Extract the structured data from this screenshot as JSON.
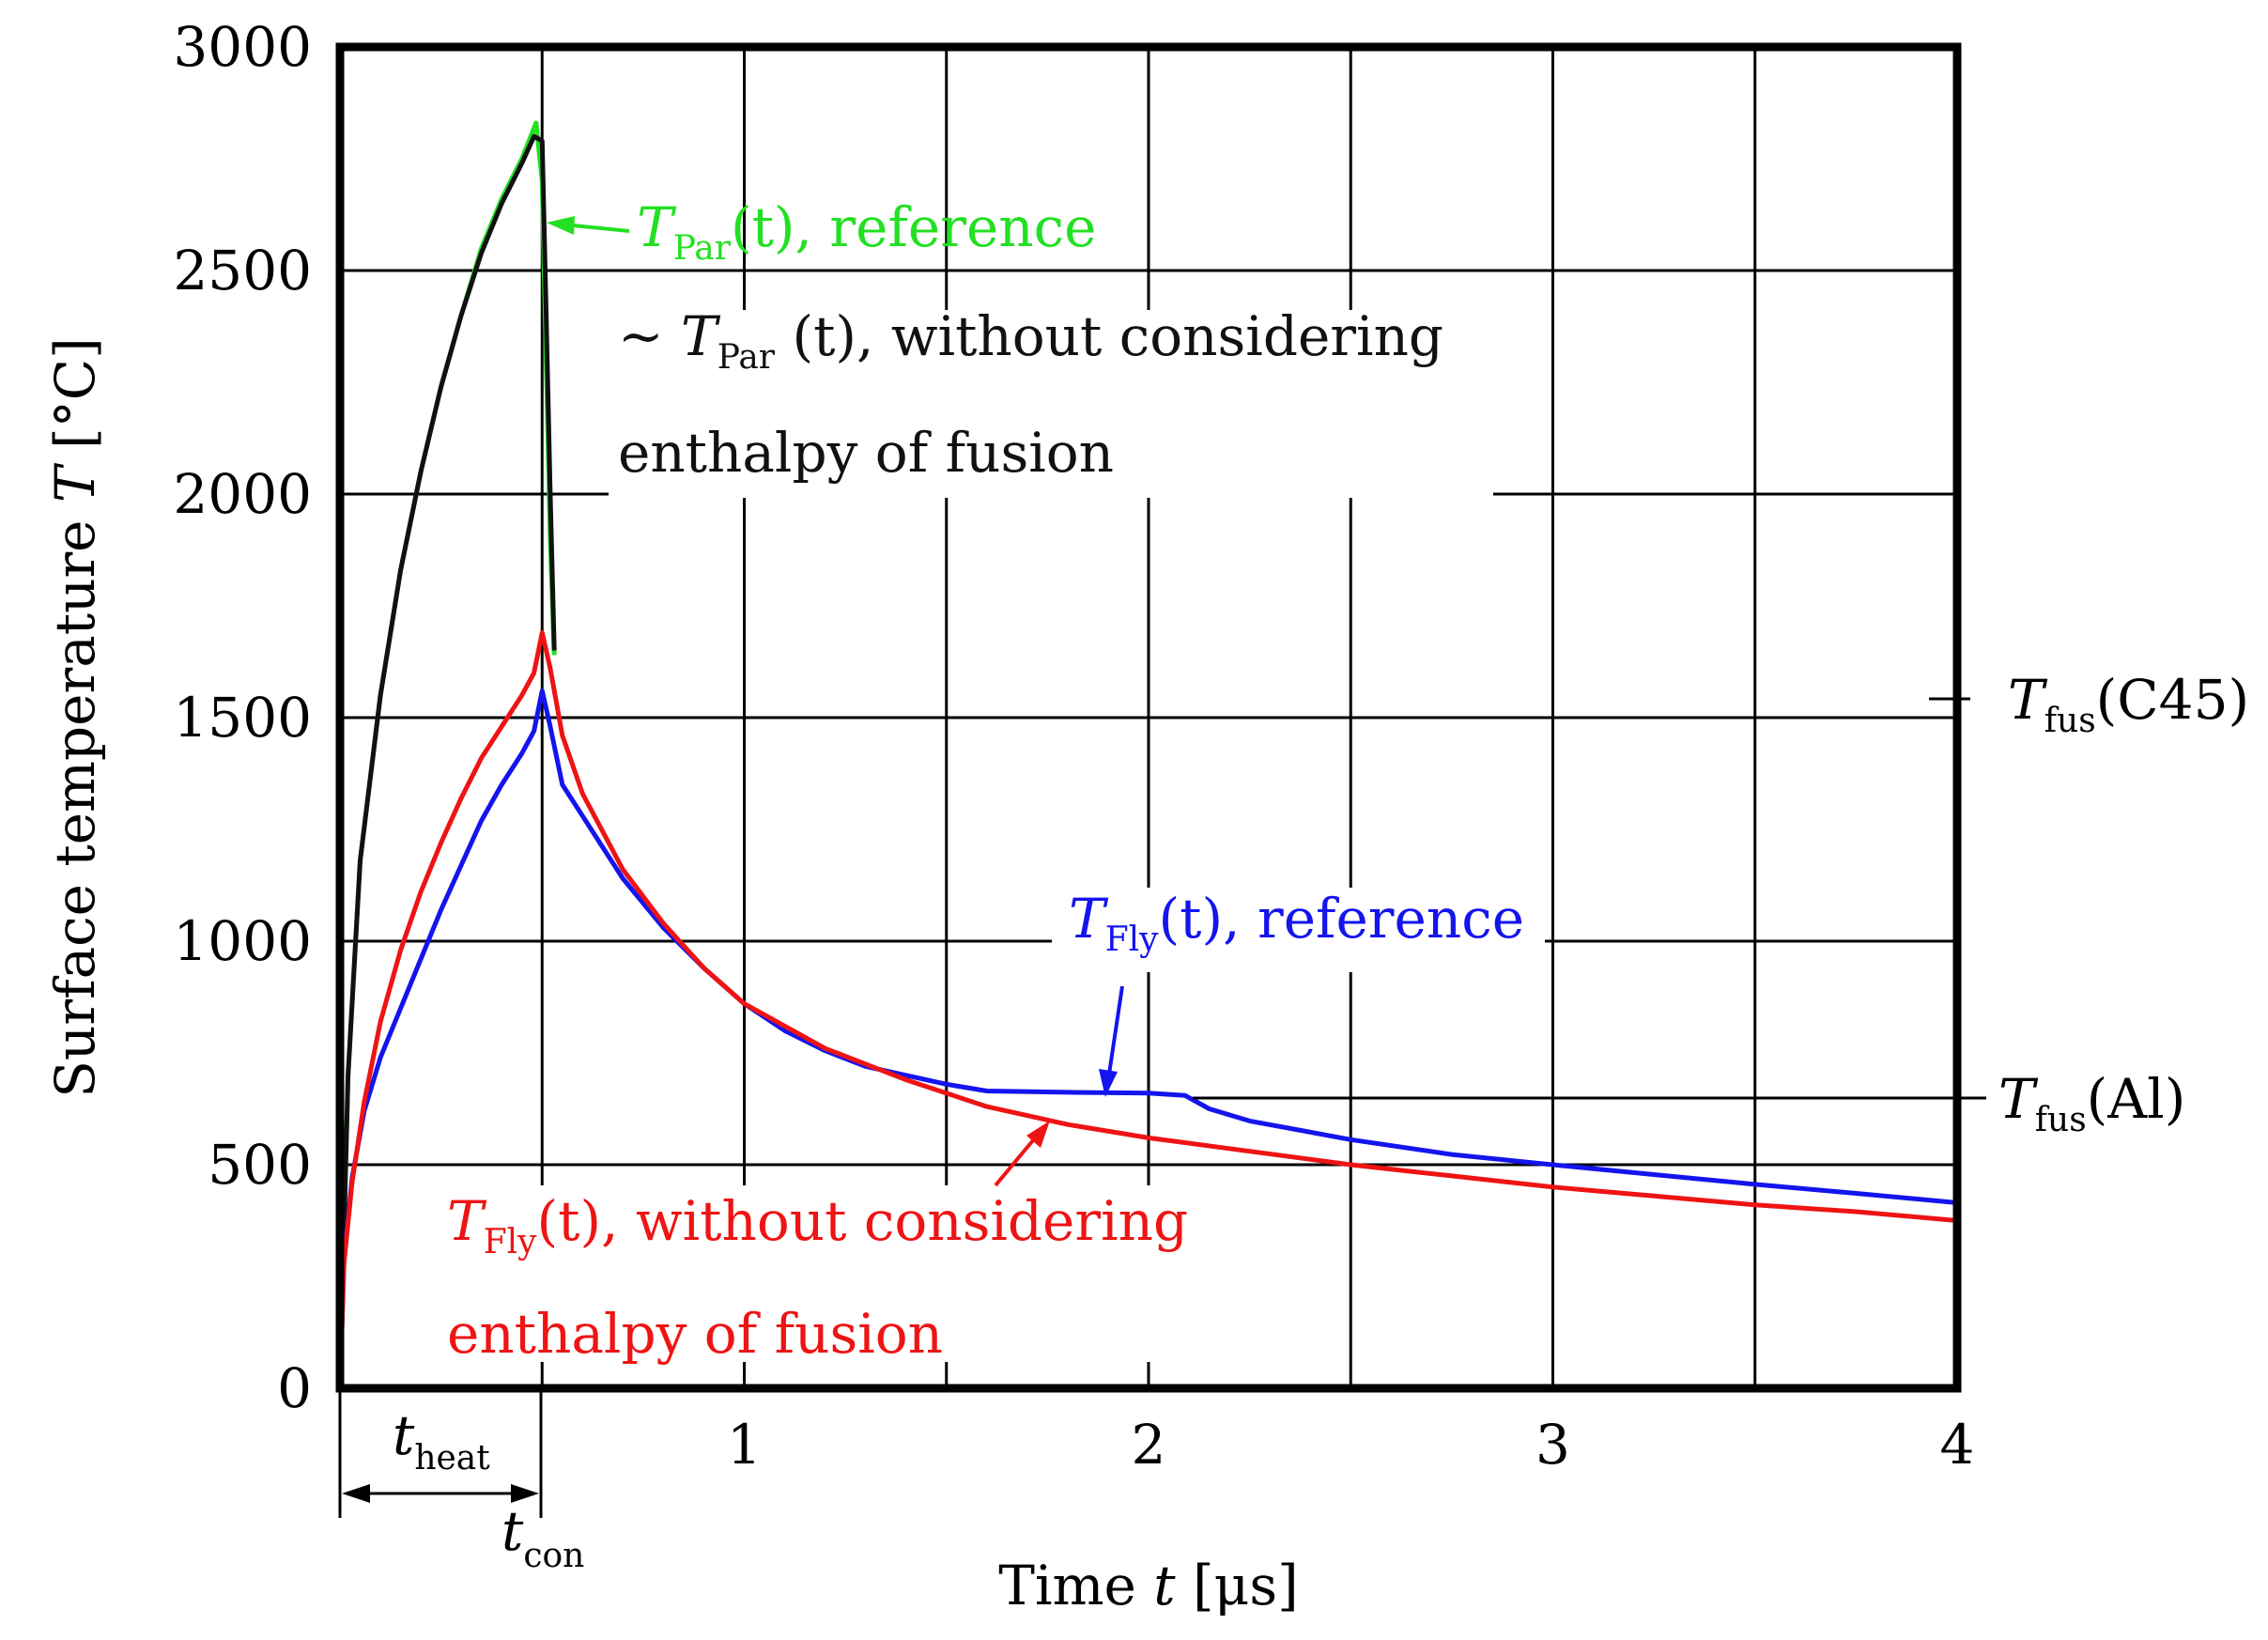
{
  "chart_data": {
    "type": "line",
    "xlabel": {
      "main": "Time ",
      "var": "t",
      "unit": " [μs]"
    },
    "ylabel": {
      "main": "Surface temperature ",
      "var": "T",
      "unit": " [°C]"
    },
    "xlim": [
      0,
      4
    ],
    "ylim": [
      0,
      3000
    ],
    "grid": true,
    "x_ticks": [
      {
        "value": 1,
        "label": "1"
      },
      {
        "value": 2,
        "label": "2"
      },
      {
        "value": 3,
        "label": "3"
      },
      {
        "value": 4,
        "label": "4"
      }
    ],
    "x_minor_grid": [
      0.5,
      1,
      1.5,
      2,
      2.5,
      3,
      3.5
    ],
    "y_ticks": [
      {
        "value": 0,
        "label": "0"
      },
      {
        "value": 500,
        "label": "500"
      },
      {
        "value": 1000,
        "label": "1000"
      },
      {
        "value": 1500,
        "label": "1500"
      },
      {
        "value": 2000,
        "label": "2000"
      },
      {
        "value": 2500,
        "label": "2500"
      },
      {
        "value": 3000,
        "label": "3000"
      }
    ],
    "series": [
      {
        "name": "T_Par(t), reference",
        "color": "#22e022",
        "points": [
          [
            0,
            0
          ],
          [
            0.02,
            700
          ],
          [
            0.05,
            1180
          ],
          [
            0.1,
            1550
          ],
          [
            0.15,
            1830
          ],
          [
            0.2,
            2050
          ],
          [
            0.25,
            2240
          ],
          [
            0.3,
            2400
          ],
          [
            0.35,
            2550
          ],
          [
            0.4,
            2660
          ],
          [
            0.45,
            2750
          ],
          [
            0.485,
            2830
          ],
          [
            0.5,
            2700
          ],
          [
            0.51,
            2300
          ],
          [
            0.52,
            1900
          ],
          [
            0.53,
            1640
          ]
        ]
      },
      {
        "name": "~T_Par(t), without considering enthalpy of fusion",
        "color": "#111111",
        "points": [
          [
            0,
            0
          ],
          [
            0.02,
            700
          ],
          [
            0.05,
            1180
          ],
          [
            0.1,
            1550
          ],
          [
            0.15,
            1830
          ],
          [
            0.2,
            2050
          ],
          [
            0.25,
            2240
          ],
          [
            0.3,
            2400
          ],
          [
            0.35,
            2540
          ],
          [
            0.4,
            2650
          ],
          [
            0.45,
            2740
          ],
          [
            0.48,
            2800
          ],
          [
            0.5,
            2790
          ],
          [
            0.51,
            2400
          ],
          [
            0.52,
            2000
          ],
          [
            0.53,
            1650
          ]
        ]
      },
      {
        "name": "T_Fly(t), reference",
        "color": "#1414ee",
        "points": [
          [
            0,
            0
          ],
          [
            0.01,
            290
          ],
          [
            0.03,
            470
          ],
          [
            0.06,
            620
          ],
          [
            0.1,
            740
          ],
          [
            0.15,
            850
          ],
          [
            0.2,
            960
          ],
          [
            0.25,
            1070
          ],
          [
            0.3,
            1170
          ],
          [
            0.35,
            1270
          ],
          [
            0.4,
            1350
          ],
          [
            0.45,
            1420
          ],
          [
            0.48,
            1470
          ],
          [
            0.5,
            1560
          ],
          [
            0.52,
            1480
          ],
          [
            0.55,
            1350
          ],
          [
            0.6,
            1280
          ],
          [
            0.7,
            1140
          ],
          [
            0.8,
            1030
          ],
          [
            0.9,
            940
          ],
          [
            1,
            860
          ],
          [
            1.1,
            800
          ],
          [
            1.2,
            755
          ],
          [
            1.3,
            720
          ],
          [
            1.4,
            700
          ],
          [
            1.5,
            680
          ],
          [
            1.6,
            665
          ],
          [
            1.8,
            662
          ],
          [
            2.0,
            660
          ],
          [
            2.09,
            655
          ],
          [
            2.15,
            625
          ],
          [
            2.25,
            598
          ],
          [
            2.5,
            556
          ],
          [
            2.75,
            523
          ],
          [
            3,
            500
          ],
          [
            3.25,
            478
          ],
          [
            3.5,
            456
          ],
          [
            3.75,
            436
          ],
          [
            4,
            415
          ]
        ]
      },
      {
        "name": "T_Fly(t), without considering enthalpy of fusion",
        "color": "#ee1414",
        "points": [
          [
            0,
            0
          ],
          [
            0.01,
            280
          ],
          [
            0.03,
            460
          ],
          [
            0.06,
            640
          ],
          [
            0.1,
            820
          ],
          [
            0.15,
            980
          ],
          [
            0.2,
            1110
          ],
          [
            0.25,
            1220
          ],
          [
            0.3,
            1320
          ],
          [
            0.35,
            1410
          ],
          [
            0.4,
            1480
          ],
          [
            0.45,
            1550
          ],
          [
            0.48,
            1600
          ],
          [
            0.5,
            1690
          ],
          [
            0.52,
            1610
          ],
          [
            0.55,
            1460
          ],
          [
            0.6,
            1330
          ],
          [
            0.7,
            1160
          ],
          [
            0.8,
            1040
          ],
          [
            0.9,
            940
          ],
          [
            1,
            860
          ],
          [
            1.2,
            760
          ],
          [
            1.4,
            690
          ],
          [
            1.6,
            630
          ],
          [
            1.8,
            590
          ],
          [
            2.0,
            560
          ],
          [
            2.25,
            530
          ],
          [
            2.5,
            500
          ],
          [
            2.75,
            475
          ],
          [
            3,
            450
          ],
          [
            3.25,
            430
          ],
          [
            3.5,
            410
          ],
          [
            3.75,
            395
          ],
          [
            4,
            375
          ]
        ]
      }
    ],
    "reference_lines": [
      {
        "name": "T_fus(C45)",
        "value": 1500,
        "sub": "fus",
        "suffix": "(C45)"
      },
      {
        "name": "T_fus(Al)",
        "value": 660,
        "sub": "fus",
        "suffix": "(Al)"
      }
    ],
    "annotations": {
      "t_par_ref": {
        "var": "T",
        "sub": "Par",
        "text": "(t), reference",
        "color": "#22e022"
      },
      "t_par_noenth": {
        "prefix": "~ ",
        "var": "T",
        "sub": "Par",
        "text": " (t), without considering",
        "line2": "enthalpy of fusion",
        "color": "#111111"
      },
      "t_fly_ref": {
        "var": "T",
        "sub": "Fly",
        "text": "(t), reference",
        "color": "#1414ee"
      },
      "t_fly_noenth": {
        "var": "T",
        "sub": "Fly",
        "text": "(t), without considering",
        "line2": "enthalpy of fusion",
        "color": "#ee1414"
      },
      "t_heat": {
        "var": "t",
        "sub": "heat",
        "value": 0.5
      },
      "t_con": {
        "var": "t",
        "sub": "con",
        "value": 0.5
      }
    }
  }
}
